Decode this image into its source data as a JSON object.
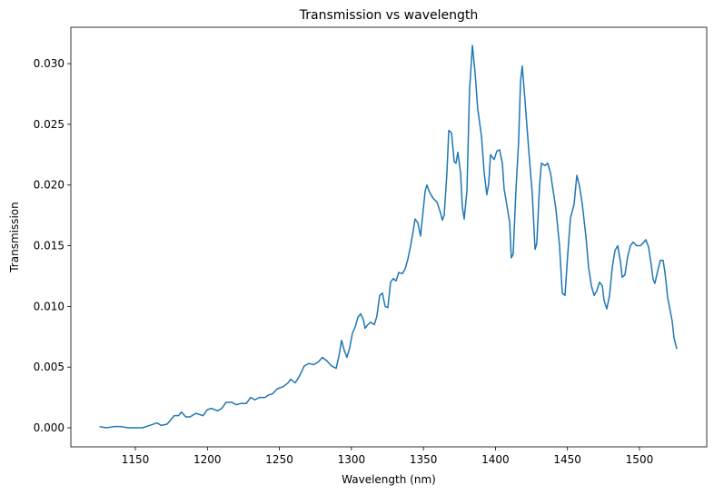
{
  "chart_data": {
    "type": "line",
    "title": "Transmission vs wavelength",
    "xlabel": "Wavelength (nm)",
    "ylabel": "Transmission",
    "xlim": [
      1105.2,
      1546.7
    ],
    "ylim": [
      -0.00157,
      0.033
    ],
    "xticks": [
      1150,
      1200,
      1250,
      1300,
      1350,
      1400,
      1450,
      1500
    ],
    "yticks": [
      {
        "value": 0,
        "label": "0.000"
      },
      {
        "value": 0.005,
        "label": "0.005"
      },
      {
        "value": 0.01,
        "label": "0.010"
      },
      {
        "value": 0.015,
        "label": "0.015"
      },
      {
        "value": 0.02,
        "label": "0.020"
      },
      {
        "value": 0.025,
        "label": "0.025"
      },
      {
        "value": 0.03,
        "label": "0.030"
      }
    ],
    "grid": false,
    "x": [
      1125,
      1130,
      1135,
      1140,
      1145,
      1150,
      1155,
      1160,
      1165,
      1168,
      1172,
      1177,
      1180,
      1182,
      1185,
      1188,
      1192,
      1197,
      1200,
      1203,
      1207,
      1210,
      1213,
      1217,
      1220,
      1223,
      1227,
      1230,
      1233,
      1236,
      1240,
      1242.5,
      1245.2,
      1248.4,
      1252.8,
      1256,
      1257.8,
      1261,
      1264.1,
      1267.3,
      1270.5,
      1273.6,
      1276.8,
      1279.9,
      1283.1,
      1286.2,
      1289.4,
      1291.3,
      1293.2,
      1295,
      1296.9,
      1298.8,
      1300.7,
      1302.6,
      1304.5,
      1306.4,
      1308.3,
      1309.5,
      1311.4,
      1313.3,
      1315.9,
      1317.7,
      1319.6,
      1321.5,
      1323.4,
      1325.3,
      1327.2,
      1329.1,
      1331,
      1332.9,
      1335.4,
      1337.3,
      1339.2,
      1341.1,
      1343,
      1344.2,
      1346.1,
      1348,
      1349.9,
      1351.2,
      1352.4,
      1354.3,
      1356.8,
      1359.4,
      1361.9,
      1363.1,
      1364.4,
      1366.3,
      1367.6,
      1369.5,
      1371.4,
      1372.6,
      1373.9,
      1375.8,
      1377,
      1378.3,
      1380.2,
      1382,
      1384,
      1385.9,
      1387.7,
      1390.3,
      1392.2,
      1394,
      1395.3,
      1396.6,
      1399.1,
      1401,
      1402.9,
      1404.8,
      1406,
      1408,
      1409.9,
      1411,
      1412.3,
      1414.2,
      1416.1,
      1417.4,
      1418.6,
      1420.5,
      1423.1,
      1425.6,
      1427.5,
      1428.7,
      1430.6,
      1431.9,
      1434.4,
      1436.3,
      1438.2,
      1440.1,
      1442,
      1444.5,
      1446.4,
      1448.3,
      1450.2,
      1452.1,
      1454.6,
      1456.5,
      1458.4,
      1460.3,
      1462.8,
      1464.7,
      1466.6,
      1468.5,
      1470.4,
      1472.3,
      1474.2,
      1475.4,
      1477.3,
      1479.2,
      1481.1,
      1483,
      1484.9,
      1486.8,
      1488,
      1489.9,
      1491.8,
      1493.7,
      1495.6,
      1498.1,
      1500.6,
      1503.1,
      1504.4,
      1506.3,
      1508.2,
      1509.5,
      1510.7,
      1512.6,
      1514.5,
      1516.4,
      1517.7,
      1519.6,
      1521.4,
      1522.7,
      1524,
      1525.9
    ],
    "series": [
      {
        "name": "Transmission",
        "color": "#1f77b4",
        "values": [
          0.0001,
          0.0,
          0.0001,
          0.0001,
          0.0,
          0.0,
          0.0,
          0.0002,
          0.0004,
          0.0002,
          0.0003,
          0.001,
          0.001,
          0.0013,
          0.0009,
          0.0009,
          0.0012,
          0.001,
          0.0015,
          0.0016,
          0.0014,
          0.0016,
          0.0021,
          0.0021,
          0.0019,
          0.002,
          0.002,
          0.0025,
          0.0023,
          0.0025,
          0.0025,
          0.0027,
          0.0028,
          0.0032,
          0.0034,
          0.0037,
          0.004,
          0.0037,
          0.0043,
          0.0051,
          0.0053,
          0.0052,
          0.0054,
          0.0058,
          0.0055,
          0.0051,
          0.0049,
          0.0059,
          0.0072,
          0.0064,
          0.0058,
          0.0066,
          0.0078,
          0.0083,
          0.0091,
          0.0094,
          0.0089,
          0.0082,
          0.0085,
          0.0087,
          0.0085,
          0.0092,
          0.0109,
          0.0111,
          0.01,
          0.0099,
          0.012,
          0.0123,
          0.0121,
          0.0128,
          0.0127,
          0.0131,
          0.0139,
          0.015,
          0.0163,
          0.0172,
          0.0169,
          0.0158,
          0.018,
          0.0195,
          0.02,
          0.0194,
          0.0189,
          0.0186,
          0.0177,
          0.0171,
          0.0175,
          0.021,
          0.0245,
          0.0243,
          0.0219,
          0.0218,
          0.0227,
          0.021,
          0.0182,
          0.0172,
          0.0195,
          0.0278,
          0.0315,
          0.0292,
          0.0263,
          0.024,
          0.021,
          0.0192,
          0.0201,
          0.0225,
          0.0221,
          0.0228,
          0.0229,
          0.0218,
          0.0197,
          0.0183,
          0.0169,
          0.014,
          0.0143,
          0.0195,
          0.0236,
          0.0285,
          0.0298,
          0.027,
          0.0229,
          0.0192,
          0.0147,
          0.0152,
          0.0199,
          0.0218,
          0.0216,
          0.0218,
          0.021,
          0.0195,
          0.018,
          0.015,
          0.0111,
          0.0109,
          0.0143,
          0.0173,
          0.0184,
          0.0208,
          0.0199,
          0.0184,
          0.0158,
          0.0132,
          0.0117,
          0.0109,
          0.0113,
          0.012,
          0.0117,
          0.0105,
          0.0098,
          0.0109,
          0.0132,
          0.0146,
          0.015,
          0.0137,
          0.0124,
          0.0126,
          0.0141,
          0.015,
          0.0153,
          0.015,
          0.015,
          0.0153,
          0.0155,
          0.0149,
          0.0134,
          0.0122,
          0.0119,
          0.0129,
          0.0138,
          0.0138,
          0.0128,
          0.0107,
          0.0096,
          0.0088,
          0.0074,
          0.0065
        ]
      }
    ]
  }
}
